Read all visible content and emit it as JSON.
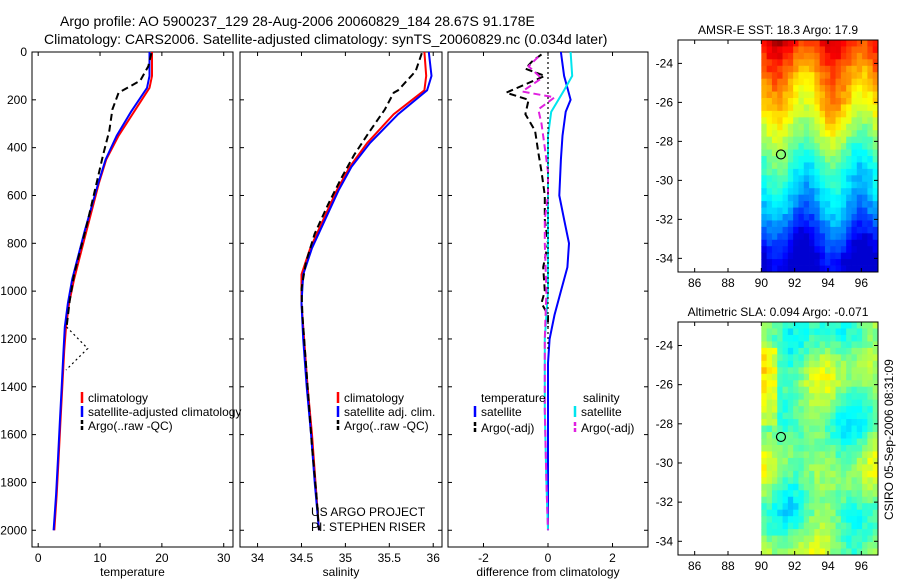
{
  "header": {
    "title_line1": "Argo profile: AO 5900237_129 28-Aug-2006 20060829_184 28.67S 91.178E",
    "title_line2": "Climatology: CARS2006. Satellite-adjusted climatology: synTS_20060829.nc (0.034d later)"
  },
  "side_stamp": "CSIRO 05-Sep-2006 08:31:09",
  "colors": {
    "climatology": "#ff0000",
    "satellite": "#0000ff",
    "argo": "#000000",
    "sal_satellite": "#00e5ee",
    "sal_argo": "#e020e0"
  },
  "chart_data": [
    {
      "id": "temperature",
      "type": "line",
      "xlabel": "temperature",
      "xlim": [
        -1,
        31.5
      ],
      "ylim": [
        0,
        2070
      ],
      "xticks": [
        0,
        10,
        20,
        30
      ],
      "yticks": [
        0,
        200,
        400,
        600,
        800,
        1000,
        1200,
        1400,
        1600,
        1800,
        2000
      ],
      "legend": [
        "climatology",
        "satellite-adjusted climatology",
        "Argo(..raw -QC)"
      ],
      "series": [
        {
          "name": "climatology",
          "color": "#ff0000",
          "style": "solid",
          "points": [
            [
              18.4,
              0
            ],
            [
              18.4,
              100
            ],
            [
              18.0,
              150
            ],
            [
              15.5,
              250
            ],
            [
              13.0,
              350
            ],
            [
              11.0,
              450
            ],
            [
              9.8,
              550
            ],
            [
              8.8,
              650
            ],
            [
              7.8,
              750
            ],
            [
              6.8,
              850
            ],
            [
              5.8,
              950
            ],
            [
              5.0,
              1050
            ],
            [
              4.5,
              1150
            ],
            [
              4.2,
              1250
            ],
            [
              3.9,
              1400
            ],
            [
              3.6,
              1550
            ],
            [
              3.3,
              1700
            ],
            [
              3.0,
              1850
            ],
            [
              2.6,
              2000
            ]
          ]
        },
        {
          "name": "satellite-adjusted climatology",
          "color": "#0000ff",
          "style": "solid",
          "points": [
            [
              18.0,
              0
            ],
            [
              18.0,
              100
            ],
            [
              17.6,
              150
            ],
            [
              15.0,
              250
            ],
            [
              12.7,
              350
            ],
            [
              10.9,
              450
            ],
            [
              9.7,
              550
            ],
            [
              8.6,
              650
            ],
            [
              7.5,
              750
            ],
            [
              6.5,
              850
            ],
            [
              5.5,
              950
            ],
            [
              4.8,
              1050
            ],
            [
              4.3,
              1150
            ],
            [
              4.1,
              1250
            ],
            [
              3.8,
              1400
            ],
            [
              3.5,
              1550
            ],
            [
              3.2,
              1700
            ],
            [
              2.9,
              1850
            ],
            [
              2.5,
              2000
            ]
          ]
        },
        {
          "name": "Argo(..raw -QC)",
          "color": "#000000",
          "style": "dash",
          "points": [
            [
              18.3,
              5
            ],
            [
              17.8,
              60
            ],
            [
              16.5,
              120
            ],
            [
              13.0,
              170
            ],
            [
              12.0,
              240
            ],
            [
              11.5,
              330
            ],
            [
              10.5,
              430
            ],
            [
              9.6,
              530
            ],
            [
              8.7,
              630
            ],
            [
              7.8,
              730
            ],
            [
              6.8,
              830
            ],
            [
              5.8,
              930
            ],
            [
              5.1,
              1040
            ],
            [
              4.6,
              1150
            ]
          ]
        },
        {
          "name": "Argo outlier",
          "color": "#000000",
          "style": "dot",
          "points": [
            [
              4.6,
              1150
            ],
            [
              8.0,
              1240
            ],
            [
              4.5,
              1330
            ]
          ]
        }
      ]
    },
    {
      "id": "salinity",
      "type": "line",
      "xlabel": "salinity",
      "xlim": [
        33.8,
        36.1
      ],
      "ylim": [
        0,
        2070
      ],
      "xticks": [
        34,
        34.5,
        35,
        35.5,
        36
      ],
      "xtick_labels": [
        "34",
        "34.5",
        "35",
        "35.5",
        "36"
      ],
      "legend": [
        "climatology",
        "satellite adj. clim.",
        "Argo(..raw -QC)"
      ],
      "annotation": [
        "US ARGO PROJECT",
        "PI: STEPHEN RISER"
      ],
      "series": [
        {
          "name": "climatology",
          "color": "#ff0000",
          "style": "solid",
          "points": [
            [
              35.9,
              0
            ],
            [
              35.92,
              100
            ],
            [
              35.9,
              160
            ],
            [
              35.55,
              260
            ],
            [
              35.25,
              380
            ],
            [
              35.05,
              480
            ],
            [
              34.9,
              580
            ],
            [
              34.75,
              700
            ],
            [
              34.6,
              820
            ],
            [
              34.5,
              930
            ],
            [
              34.5,
              1050
            ],
            [
              34.53,
              1200
            ],
            [
              34.57,
              1400
            ],
            [
              34.62,
              1600
            ],
            [
              34.66,
              1800
            ],
            [
              34.7,
              2000
            ]
          ]
        },
        {
          "name": "satellite adj. clim.",
          "color": "#0000ff",
          "style": "solid",
          "points": [
            [
              35.95,
              0
            ],
            [
              35.98,
              100
            ],
            [
              35.93,
              160
            ],
            [
              35.6,
              260
            ],
            [
              35.28,
              380
            ],
            [
              35.07,
              480
            ],
            [
              34.92,
              580
            ],
            [
              34.77,
              700
            ],
            [
              34.62,
              820
            ],
            [
              34.52,
              930
            ],
            [
              34.5,
              1050
            ],
            [
              34.52,
              1200
            ],
            [
              34.56,
              1400
            ],
            [
              34.61,
              1600
            ],
            [
              34.65,
              1800
            ],
            [
              34.7,
              2000
            ]
          ]
        },
        {
          "name": "Argo(..raw -QC)",
          "color": "#000000",
          "style": "dash",
          "points": [
            [
              35.87,
              5
            ],
            [
              35.8,
              80
            ],
            [
              35.6,
              160
            ],
            [
              35.55,
              170
            ],
            [
              35.45,
              240
            ],
            [
              35.28,
              330
            ],
            [
              35.1,
              430
            ],
            [
              34.95,
              530
            ],
            [
              34.8,
              640
            ],
            [
              34.65,
              760
            ],
            [
              34.55,
              880
            ],
            [
              34.5,
              990
            ],
            [
              34.51,
              1100
            ],
            [
              34.54,
              1250
            ],
            [
              34.58,
              1450
            ],
            [
              34.62,
              1650
            ],
            [
              34.67,
              1850
            ],
            [
              34.7,
              2000
            ]
          ]
        }
      ]
    },
    {
      "id": "difference",
      "type": "line",
      "xlabel": "difference from climatology",
      "xlim": [
        -3.1,
        3.1
      ],
      "ylim": [
        0,
        2070
      ],
      "xticks": [
        -2,
        0,
        2
      ],
      "legend_temperature": [
        "temperature",
        "satellite",
        "Argo(-adj)"
      ],
      "legend_salinity": [
        "salinity",
        "satellite",
        "Argo(-adj)"
      ],
      "series": [
        {
          "name": "temperature satellite",
          "color": "#0000ff",
          "style": "solid",
          "points": [
            [
              0.4,
              0
            ],
            [
              0.5,
              100
            ],
            [
              0.6,
              150
            ],
            [
              0.7,
              200
            ],
            [
              0.55,
              250
            ],
            [
              0.45,
              350
            ],
            [
              0.4,
              450
            ],
            [
              0.35,
              600
            ],
            [
              0.5,
              700
            ],
            [
              0.65,
              800
            ],
            [
              0.6,
              900
            ],
            [
              0.4,
              1000
            ],
            [
              0.2,
              1100
            ],
            [
              0.05,
              1200
            ],
            [
              0.0,
              1300
            ],
            [
              0.0,
              2000
            ]
          ]
        },
        {
          "name": "temperature Argo(-adj)",
          "color": "#000000",
          "style": "dash",
          "points": [
            [
              -0.2,
              10
            ],
            [
              -0.5,
              40
            ],
            [
              -0.7,
              70
            ],
            [
              -0.1,
              100
            ],
            [
              -1.3,
              170
            ],
            [
              -0.6,
              200
            ],
            [
              -0.7,
              260
            ],
            [
              -0.4,
              330
            ],
            [
              -0.3,
              420
            ],
            [
              -0.2,
              500
            ],
            [
              -0.1,
              600
            ],
            [
              -0.1,
              700
            ],
            [
              0.0,
              800
            ],
            [
              -0.15,
              900
            ],
            [
              -0.1,
              1000
            ],
            [
              -0.2,
              1050
            ],
            [
              0.0,
              1100
            ],
            [
              0.0,
              1150
            ]
          ]
        },
        {
          "name": "salinity satellite",
          "color": "#00e5ee",
          "style": "solid",
          "points": [
            [
              0.7,
              0
            ],
            [
              0.75,
              100
            ],
            [
              0.5,
              160
            ],
            [
              0.1,
              250
            ],
            [
              0.0,
              350
            ],
            [
              0.0,
              600
            ],
            [
              0.0,
              1000
            ],
            [
              -0.1,
              1200
            ],
            [
              -0.1,
              1500
            ],
            [
              -0.05,
              1800
            ],
            [
              0.0,
              2000
            ]
          ]
        },
        {
          "name": "salinity Argo(-adj)",
          "color": "#e020e0",
          "style": "dash",
          "points": [
            [
              -0.3,
              20
            ],
            [
              -0.6,
              60
            ],
            [
              -0.2,
              110
            ],
            [
              -0.8,
              165
            ],
            [
              0.2,
              190
            ],
            [
              -0.3,
              240
            ],
            [
              -0.2,
              300
            ],
            [
              -0.1,
              400
            ],
            [
              0.0,
              500
            ],
            [
              0.0,
              600
            ],
            [
              -0.1,
              700
            ],
            [
              -0.1,
              800
            ],
            [
              -0.05,
              1000
            ],
            [
              -0.1,
              1200
            ],
            [
              -0.1,
              1500
            ],
            [
              -0.05,
              1800
            ],
            [
              0.0,
              2000
            ]
          ]
        },
        {
          "name": "zero reference",
          "color": "#000000",
          "style": "dot",
          "points": [
            [
              0,
              0
            ],
            [
              0,
              1250
            ]
          ]
        }
      ]
    },
    {
      "id": "sst_map",
      "type": "heatmap",
      "title": "AMSR-E SST: 18.3 Argo: 17.9",
      "xticks": [
        86,
        88,
        90,
        92,
        94,
        96
      ],
      "yticks": [
        -24,
        -26,
        -28,
        -30,
        -32,
        -34
      ],
      "xlim": [
        85,
        97
      ],
      "ylim": [
        -34.7,
        -22.8
      ],
      "data_lon_range": [
        90,
        97
      ],
      "float_position": [
        91.178,
        -28.67
      ]
    },
    {
      "id": "sla_map",
      "type": "heatmap",
      "title": "Altimetric SLA: 0.094 Argo: -0.071",
      "xticks": [
        86,
        88,
        90,
        92,
        94,
        96
      ],
      "yticks": [
        -24,
        -26,
        -28,
        -30,
        -32,
        -34
      ],
      "xlim": [
        85,
        97
      ],
      "ylim": [
        -34.7,
        -22.8
      ],
      "data_lon_range": [
        90,
        97
      ],
      "float_position": [
        91.178,
        -28.67
      ]
    }
  ]
}
